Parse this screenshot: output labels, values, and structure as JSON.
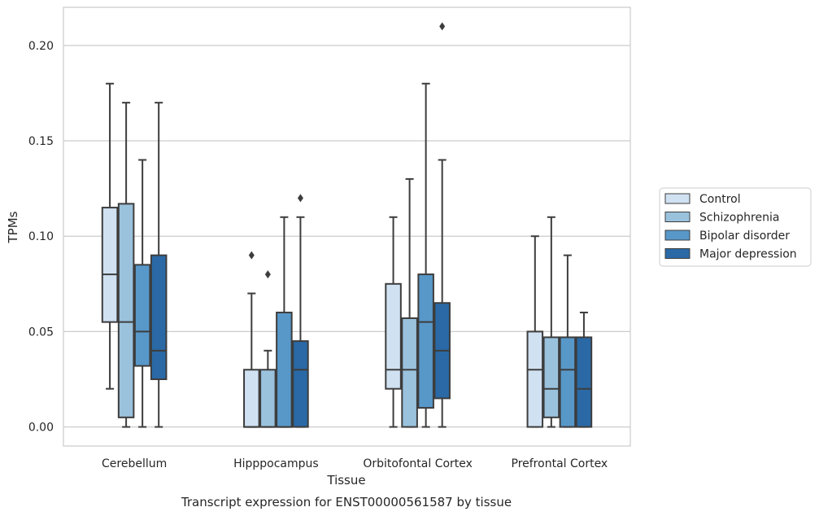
{
  "chart_data": {
    "type": "box",
    "xlabel": "Tissue",
    "ylabel": "TPMs",
    "caption": "Transcript expression for ENST00000561587 by tissue",
    "ylim": [
      -0.01,
      0.22
    ],
    "yticks": [
      0.0,
      0.05,
      0.1,
      0.15,
      0.2
    ],
    "ytick_labels": [
      "0.00",
      "0.05",
      "0.10",
      "0.15",
      "0.20"
    ],
    "grid": true,
    "legend_position": "right",
    "categories": [
      "Cerebellum",
      "Hipppocampus",
      "Orbitofontal Cortex",
      "Prefrontal Cortex"
    ],
    "series": [
      {
        "name": "Control",
        "color": "#d0e1f2",
        "boxes": [
          {
            "whisker_low": 0.02,
            "q1": 0.055,
            "median": 0.08,
            "q3": 0.115,
            "whisker_high": 0.18,
            "outliers": []
          },
          {
            "whisker_low": 0.0,
            "q1": 0.0,
            "median": 0.0,
            "q3": 0.03,
            "whisker_high": 0.07,
            "outliers": [
              0.09
            ]
          },
          {
            "whisker_low": 0.0,
            "q1": 0.02,
            "median": 0.03,
            "q3": 0.075,
            "whisker_high": 0.11,
            "outliers": []
          },
          {
            "whisker_low": 0.0,
            "q1": 0.0,
            "median": 0.03,
            "q3": 0.05,
            "whisker_high": 0.1,
            "outliers": []
          }
        ]
      },
      {
        "name": "Schizophrenia",
        "color": "#9ac2dd",
        "boxes": [
          {
            "whisker_low": 0.0,
            "q1": 0.005,
            "median": 0.055,
            "q3": 0.117,
            "whisker_high": 0.17,
            "outliers": []
          },
          {
            "whisker_low": 0.0,
            "q1": 0.0,
            "median": 0.0,
            "q3": 0.03,
            "whisker_high": 0.04,
            "outliers": [
              0.08
            ]
          },
          {
            "whisker_low": 0.0,
            "q1": 0.0,
            "median": 0.03,
            "q3": 0.057,
            "whisker_high": 0.13,
            "outliers": []
          },
          {
            "whisker_low": 0.0,
            "q1": 0.005,
            "median": 0.02,
            "q3": 0.047,
            "whisker_high": 0.11,
            "outliers": []
          }
        ]
      },
      {
        "name": "Bipolar disorder",
        "color": "#5898c9",
        "boxes": [
          {
            "whisker_low": 0.0,
            "q1": 0.032,
            "median": 0.05,
            "q3": 0.085,
            "whisker_high": 0.14,
            "outliers": []
          },
          {
            "whisker_low": 0.0,
            "q1": 0.0,
            "median": 0.0,
            "q3": 0.06,
            "whisker_high": 0.11,
            "outliers": []
          },
          {
            "whisker_low": 0.0,
            "q1": 0.01,
            "median": 0.055,
            "q3": 0.08,
            "whisker_high": 0.18,
            "outliers": []
          },
          {
            "whisker_low": 0.0,
            "q1": 0.0,
            "median": 0.03,
            "q3": 0.047,
            "whisker_high": 0.09,
            "outliers": []
          }
        ]
      },
      {
        "name": "Major depression",
        "color": "#2a69a6",
        "boxes": [
          {
            "whisker_low": 0.0,
            "q1": 0.025,
            "median": 0.04,
            "q3": 0.09,
            "whisker_high": 0.17,
            "outliers": []
          },
          {
            "whisker_low": 0.0,
            "q1": 0.0,
            "median": 0.03,
            "q3": 0.045,
            "whisker_high": 0.11,
            "outliers": [
              0.12
            ]
          },
          {
            "whisker_low": 0.0,
            "q1": 0.015,
            "median": 0.04,
            "q3": 0.065,
            "whisker_high": 0.14,
            "outliers": [
              0.21
            ]
          },
          {
            "whisker_low": 0.0,
            "q1": 0.0,
            "median": 0.02,
            "q3": 0.047,
            "whisker_high": 0.06,
            "outliers": []
          }
        ]
      }
    ]
  }
}
